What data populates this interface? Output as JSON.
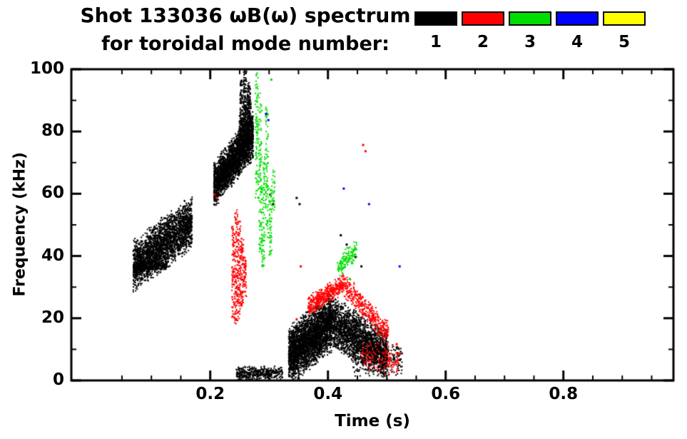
{
  "chart_data": {
    "type": "scatter",
    "title": "Shot 133036 ωB(ω) spectrum",
    "subtitle": "for toroidal mode number:",
    "xlabel": "Time (s)",
    "ylabel": "Frequency (kHz)",
    "xlim": [
      -0.036,
      0.987
    ],
    "ylim": [
      0,
      100
    ],
    "xticks": [
      0.2,
      0.4,
      0.6,
      0.8
    ],
    "xtick_labels": [
      "0.2",
      "0.4",
      "0.6",
      "0.8"
    ],
    "x_minor_step": 0.05,
    "yticks": [
      0,
      20,
      40,
      60,
      80,
      100
    ],
    "ytick_labels": [
      "0",
      "20",
      "40",
      "60",
      "80",
      "100"
    ],
    "y_minor_step": 10,
    "grid": false,
    "frame_color": "#000000",
    "background": "#ffffff",
    "legend": {
      "position": "top-right",
      "entries": [
        {
          "label": "1",
          "color": "#000000"
        },
        {
          "label": "2",
          "color": "#ff0000"
        },
        {
          "label": "3",
          "color": "#00dd00"
        },
        {
          "label": "4",
          "color": "#0000ff"
        },
        {
          "label": "5",
          "color": "#ffff00"
        }
      ]
    },
    "series": [
      {
        "name": "toroidal-mode-1",
        "color": "#000000",
        "clusters": [
          {
            "type": "blob",
            "t0": 0.068,
            "t1": 0.168,
            "f0": 37,
            "f1": 51,
            "spread": 9,
            "count": 2600
          },
          {
            "type": "blob",
            "t0": 0.068,
            "t1": 0.125,
            "f0": 36.5,
            "f1": 37,
            "spread": 1.5,
            "count": 300
          },
          {
            "type": "blob",
            "t0": 0.205,
            "t1": 0.272,
            "f0": 63,
            "f1": 79,
            "spread": 8,
            "count": 2600
          },
          {
            "type": "blob",
            "t0": 0.248,
            "t1": 0.268,
            "f0": 80,
            "f1": 88,
            "spread": 8,
            "count": 260
          },
          {
            "type": "vline",
            "t": 0.252,
            "f0": 78,
            "f1": 97,
            "count": 90
          },
          {
            "type": "vline",
            "t": 0.258,
            "f0": 80,
            "f1": 100,
            "count": 110
          },
          {
            "type": "vline",
            "t": 0.264,
            "f0": 80,
            "f1": 96,
            "count": 80
          },
          {
            "type": "blob",
            "t0": 0.243,
            "t1": 0.322,
            "f0": 2.5,
            "f1": 2.5,
            "spread": 2.5,
            "count": 420
          },
          {
            "type": "blob",
            "t0": 0.332,
            "t1": 0.405,
            "f0": 8,
            "f1": 19,
            "spread": 10,
            "count": 3000
          },
          {
            "type": "blob",
            "t0": 0.405,
            "t1": 0.5,
            "f0": 19,
            "f1": 8,
            "spread": 9,
            "count": 2200
          },
          {
            "type": "blob",
            "t0": 0.44,
            "t1": 0.525,
            "f0": 7,
            "f1": 7,
            "spread": 6,
            "count": 260
          },
          {
            "type": "points",
            "size": 3,
            "pts": [
              [
                0.345,
                59
              ],
              [
                0.35,
                57
              ],
              [
                0.42,
                47
              ],
              [
                0.43,
                44
              ],
              [
                0.445,
                40
              ],
              [
                0.455,
                37
              ],
              [
                0.3,
                60
              ],
              [
                0.305,
                57
              ]
            ]
          }
        ]
      },
      {
        "name": "toroidal-mode-2",
        "color": "#ff0000",
        "clusters": [
          {
            "type": "vline",
            "t": 0.238,
            "f0": 20,
            "f1": 50,
            "count": 90
          },
          {
            "type": "vline",
            "t": 0.243,
            "f0": 18,
            "f1": 55,
            "count": 110
          },
          {
            "type": "vline",
            "t": 0.248,
            "f0": 20,
            "f1": 52,
            "count": 100
          },
          {
            "type": "vline",
            "t": 0.253,
            "f0": 24,
            "f1": 46,
            "count": 80
          },
          {
            "type": "vline",
            "t": 0.258,
            "f0": 27,
            "f1": 40,
            "count": 50
          },
          {
            "type": "blob",
            "t0": 0.365,
            "t1": 0.425,
            "f0": 24,
            "f1": 31,
            "spread": 3.5,
            "count": 420
          },
          {
            "type": "blob",
            "t0": 0.425,
            "t1": 0.502,
            "f0": 31,
            "f1": 15,
            "spread": 4.5,
            "count": 380
          },
          {
            "type": "blob",
            "t0": 0.455,
            "t1": 0.52,
            "f0": 8,
            "f1": 6,
            "spread": 5,
            "count": 150
          },
          {
            "type": "points",
            "size": 3,
            "pts": [
              [
                0.205,
                60
              ],
              [
                0.21,
                59
              ],
              [
                0.458,
                76
              ],
              [
                0.462,
                74
              ],
              [
                0.352,
                37
              ],
              [
                0.345,
                20
              ],
              [
                0.52,
                9
              ],
              [
                0.515,
                12
              ]
            ]
          }
        ]
      },
      {
        "name": "toroidal-mode-3",
        "color": "#00dd00",
        "clusters": [
          {
            "type": "vline",
            "t": 0.278,
            "f0": 58,
            "f1": 100,
            "count": 100
          },
          {
            "type": "vline",
            "t": 0.284,
            "f0": 40,
            "f1": 93,
            "count": 110
          },
          {
            "type": "vline",
            "t": 0.289,
            "f0": 36,
            "f1": 72,
            "count": 80
          },
          {
            "type": "vline",
            "t": 0.295,
            "f0": 45,
            "f1": 88,
            "count": 90
          },
          {
            "type": "vline",
            "t": 0.301,
            "f0": 40,
            "f1": 62,
            "count": 60
          },
          {
            "type": "vline",
            "t": 0.306,
            "f0": 55,
            "f1": 68,
            "count": 30
          },
          {
            "type": "blob",
            "t0": 0.415,
            "t1": 0.448,
            "f0": 36,
            "f1": 43,
            "spread": 4,
            "count": 140
          },
          {
            "type": "points",
            "size": 3,
            "pts": [
              [
                0.302,
                97
              ],
              [
                0.435,
                33
              ]
            ]
          }
        ]
      },
      {
        "name": "toroidal-mode-4",
        "color": "#0000ff",
        "clusters": [
          {
            "type": "points",
            "size": 3,
            "pts": [
              [
                0.293,
                86
              ],
              [
                0.297,
                84
              ],
              [
                0.425,
                62
              ],
              [
                0.468,
                57
              ],
              [
                0.52,
                37
              ]
            ]
          }
        ]
      },
      {
        "name": "toroidal-mode-5",
        "color": "#ffff00",
        "clusters": []
      }
    ]
  }
}
